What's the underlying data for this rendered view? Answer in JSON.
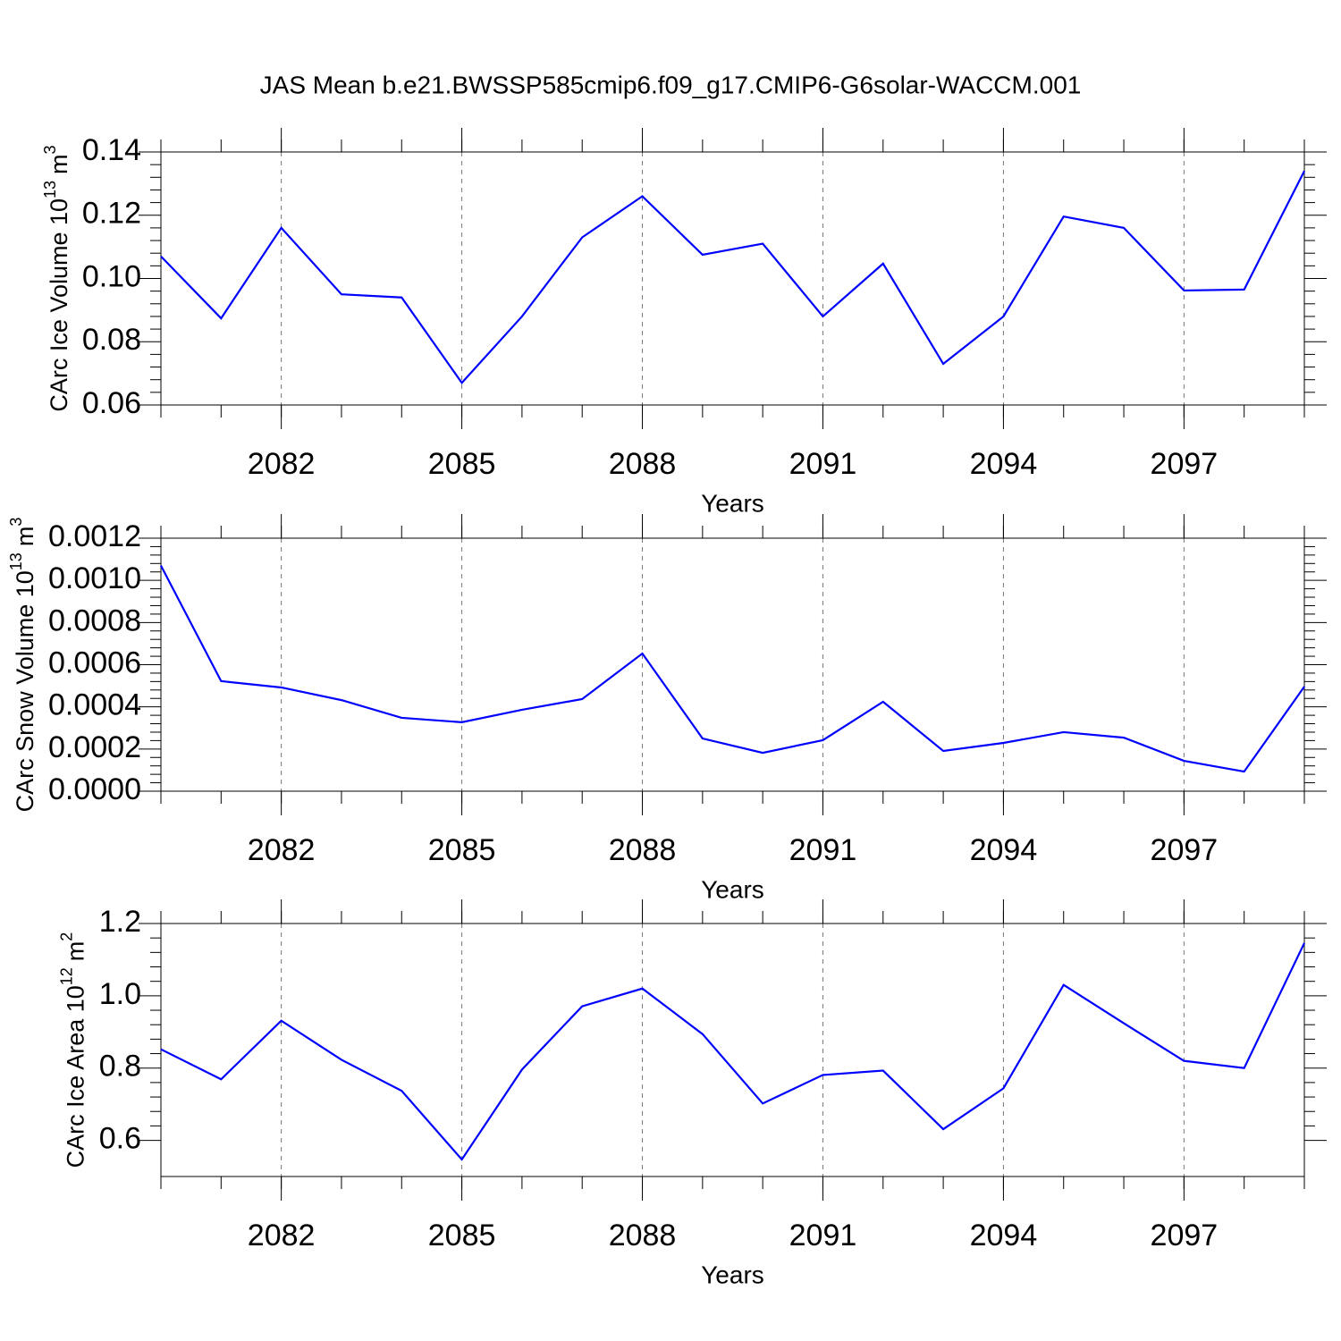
{
  "chart_data": [
    {
      "type": "line",
      "title": "JAS Mean b.e21.BWSSP585cmip6.f09_g17.CMIP6-G6solar-WACCM.001",
      "xlabel": "Years",
      "ylabel": {
        "text": "CArc Ice Volume 10",
        "exponent": "13",
        "unit": "m",
        "unit_exponent": "3"
      },
      "x": [
        2080,
        2081,
        2082,
        2083,
        2084,
        2085,
        2086,
        2087,
        2088,
        2089,
        2090,
        2091,
        2092,
        2093,
        2094,
        2095,
        2096,
        2097,
        2098,
        2099
      ],
      "values": [
        0.107,
        0.0874,
        0.116,
        0.095,
        0.094,
        0.067,
        0.088,
        0.113,
        0.126,
        0.1075,
        0.111,
        0.088,
        0.1047,
        0.073,
        0.088,
        0.1196,
        0.116,
        0.0962,
        0.0965,
        0.134
      ],
      "color": "#0000ff",
      "xlim": [
        2080,
        2099
      ],
      "xticks": [
        2082,
        2085,
        2088,
        2091,
        2094,
        2097
      ],
      "ylim": [
        0.06,
        0.14
      ],
      "yticks": [
        {
          "value": 0.06,
          "label": "0.06"
        },
        {
          "value": 0.08,
          "label": "0.08"
        },
        {
          "value": 0.1,
          "label": "0.10"
        },
        {
          "value": 0.12,
          "label": "0.12"
        },
        {
          "value": 0.14,
          "label": "0.14"
        }
      ],
      "grid": true
    },
    {
      "type": "line",
      "xlabel": "Years",
      "ylabel": {
        "text": "CArc Snow Volume 10",
        "exponent": "13",
        "unit": "m",
        "unit_exponent": "3"
      },
      "x": [
        2080,
        2081,
        2082,
        2083,
        2084,
        2085,
        2086,
        2087,
        2088,
        2089,
        2090,
        2091,
        2092,
        2093,
        2094,
        2095,
        2096,
        2097,
        2098,
        2099
      ],
      "values": [
        0.00107,
        0.000522,
        0.000492,
        0.000432,
        0.000348,
        0.000327,
        0.000386,
        0.000437,
        0.000653,
        0.00025,
        0.000182,
        0.000242,
        0.000424,
        0.000191,
        0.000229,
        0.00028,
        0.000254,
        0.000144,
        9.3e-05,
        0.000496
      ],
      "color": "#0000ff",
      "xlim": [
        2080,
        2099
      ],
      "xticks": [
        2082,
        2085,
        2088,
        2091,
        2094,
        2097
      ],
      "ylim": [
        0,
        0.0012
      ],
      "yticks": [
        {
          "value": 0,
          "label": "0.0000"
        },
        {
          "value": 0.0002,
          "label": "0.0002"
        },
        {
          "value": 0.0004,
          "label": "0.0004"
        },
        {
          "value": 0.0006,
          "label": "0.0006"
        },
        {
          "value": 0.0008,
          "label": "0.0008"
        },
        {
          "value": 0.001,
          "label": "0.0010"
        },
        {
          "value": 0.0012,
          "label": "0.0012"
        }
      ],
      "grid": true
    },
    {
      "type": "line",
      "xlabel": "Years",
      "ylabel": {
        "text": "CArc Ice Area 10",
        "exponent": "12",
        "unit": "m",
        "unit_exponent": "2"
      },
      "x": [
        2080,
        2081,
        2082,
        2083,
        2084,
        2085,
        2086,
        2087,
        2088,
        2089,
        2090,
        2091,
        2092,
        2093,
        2094,
        2095,
        2096,
        2097,
        2098,
        2099
      ],
      "values": [
        0.852,
        0.769,
        0.931,
        0.823,
        0.737,
        0.547,
        0.796,
        0.971,
        1.02,
        0.894,
        0.702,
        0.781,
        0.793,
        0.631,
        0.744,
        1.03,
        0.924,
        0.82,
        0.8,
        1.146
      ],
      "color": "#0000ff",
      "xlim": [
        2080,
        2099
      ],
      "xticks": [
        2082,
        2085,
        2088,
        2091,
        2094,
        2097
      ],
      "ylim": [
        0.5,
        1.2
      ],
      "yticks": [
        {
          "value": 0.6,
          "label": "0.6"
        },
        {
          "value": 0.8,
          "label": "0.8"
        },
        {
          "value": 1,
          "label": "1.0"
        },
        {
          "value": 1.2,
          "label": "1.2"
        }
      ],
      "grid": true
    }
  ]
}
